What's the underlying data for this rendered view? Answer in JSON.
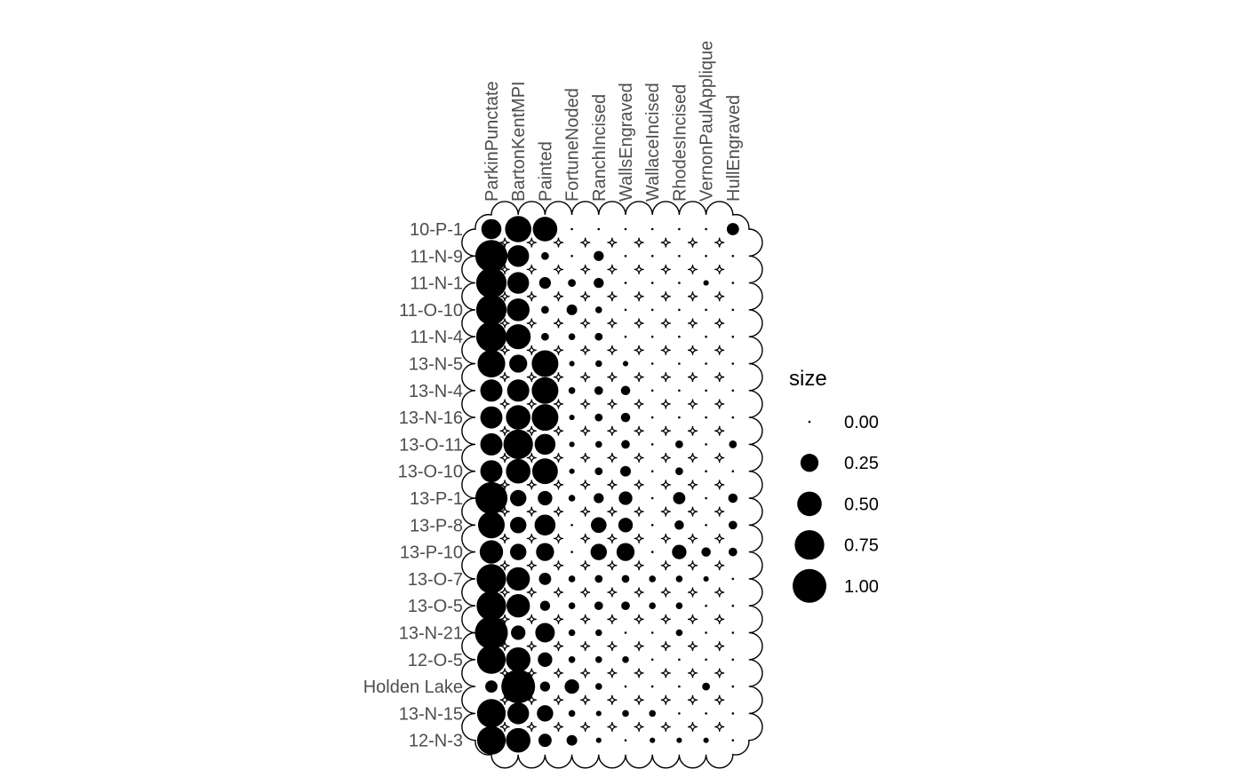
{
  "chart_data": {
    "type": "matrix-dot",
    "columns": [
      "ParkinPunctate",
      "BartonKentMPI",
      "Painted",
      "FortuneNoded",
      "RanchIncised",
      "WallsEngraved",
      "WallaceIncised",
      "RhodesIncised",
      "VernonPaulApplique",
      "HullEngraved"
    ],
    "rows": [
      "10-P-1",
      "11-N-9",
      "11-N-1",
      "11-O-10",
      "11-N-4",
      "13-N-5",
      "13-N-4",
      "13-N-16",
      "13-O-11",
      "13-O-10",
      "13-P-1",
      "13-P-8",
      "13-P-10",
      "13-O-7",
      "13-O-5",
      "13-N-21",
      "12-O-5",
      "Holden Lake",
      "13-N-15",
      "12-N-3"
    ],
    "values": [
      [
        0.32,
        0.58,
        0.5,
        0.0,
        0.0,
        0.0,
        0.0,
        0.0,
        0.0,
        0.1
      ],
      [
        0.9,
        0.38,
        0.03,
        0.0,
        0.06,
        0.0,
        0.0,
        0.0,
        0.0,
        0.0
      ],
      [
        0.8,
        0.38,
        0.09,
        0.03,
        0.06,
        0.0,
        0.0,
        0.0,
        0.01,
        0.0
      ],
      [
        0.8,
        0.42,
        0.03,
        0.07,
        0.02,
        0.0,
        0.0,
        0.0,
        0.0,
        0.0
      ],
      [
        0.8,
        0.52,
        0.03,
        0.02,
        0.03,
        0.0,
        0.0,
        0.0,
        0.0,
        0.0
      ],
      [
        0.65,
        0.25,
        0.6,
        0.01,
        0.02,
        0.01,
        0.0,
        0.0,
        0.0,
        0.0
      ],
      [
        0.4,
        0.4,
        0.6,
        0.02,
        0.04,
        0.05,
        0.0,
        0.0,
        0.0,
        0.0
      ],
      [
        0.4,
        0.5,
        0.6,
        0.01,
        0.03,
        0.05,
        0.0,
        0.0,
        0.0,
        0.0
      ],
      [
        0.4,
        0.75,
        0.35,
        0.01,
        0.02,
        0.04,
        0.0,
        0.03,
        0.0,
        0.03
      ],
      [
        0.4,
        0.5,
        0.55,
        0.01,
        0.03,
        0.07,
        0.0,
        0.03,
        0.0,
        0.0
      ],
      [
        0.9,
        0.2,
        0.15,
        0.02,
        0.06,
        0.13,
        0.0,
        0.1,
        0.0,
        0.05
      ],
      [
        0.6,
        0.2,
        0.35,
        0.0,
        0.18,
        0.15,
        0.0,
        0.05,
        0.0,
        0.04
      ],
      [
        0.45,
        0.2,
        0.25,
        0.0,
        0.2,
        0.25,
        0.0,
        0.15,
        0.05,
        0.04
      ],
      [
        0.75,
        0.45,
        0.1,
        0.02,
        0.03,
        0.03,
        0.02,
        0.02,
        0.01,
        0.0
      ],
      [
        0.75,
        0.45,
        0.06,
        0.02,
        0.04,
        0.04,
        0.02,
        0.02,
        0.0,
        0.0
      ],
      [
        0.95,
        0.15,
        0.3,
        0.02,
        0.02,
        0.0,
        0.0,
        0.02,
        0.0,
        0.0
      ],
      [
        0.7,
        0.5,
        0.15,
        0.02,
        0.02,
        0.02,
        0.0,
        0.0,
        0.0,
        0.0
      ],
      [
        0.1,
        1.0,
        0.06,
        0.15,
        0.02,
        0.0,
        0.0,
        0.0,
        0.03,
        0.0
      ],
      [
        0.7,
        0.38,
        0.2,
        0.02,
        0.01,
        0.02,
        0.02,
        0.0,
        0.0,
        0.0
      ],
      [
        0.7,
        0.5,
        0.12,
        0.07,
        0.01,
        0.0,
        0.01,
        0.01,
        0.01,
        0.0
      ]
    ],
    "size_range": [
      0,
      1
    ],
    "legend": {
      "title": "size",
      "position": "right",
      "breaks": [
        0,
        0.25,
        0.5,
        0.75,
        1.0
      ],
      "labels": [
        "0.00",
        "0.25",
        "0.50",
        "0.75",
        "1.00"
      ]
    },
    "grid": false
  }
}
